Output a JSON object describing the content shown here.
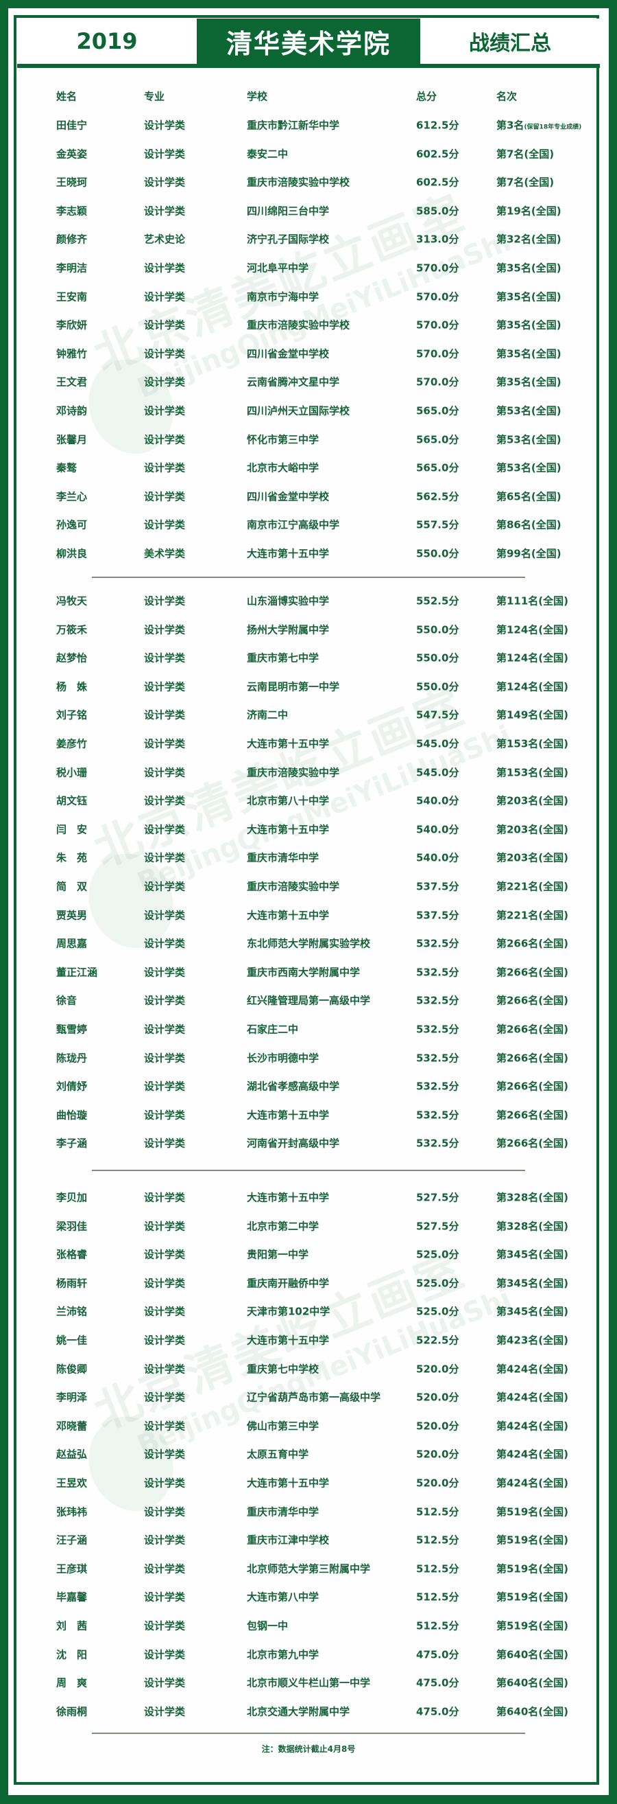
{
  "header": {
    "year": "2019",
    "title": "清华美术学院",
    "subtitle": "战绩汇总"
  },
  "colors": {
    "brand_green": "#0b6633",
    "text_green": "#16613a"
  },
  "watermark": {
    "cn": "北京清美屹立画室",
    "en": "BeijingQingMeiYiLiHuaShi"
  },
  "columns": [
    "姓名",
    "专业",
    "学校",
    "总分",
    "名次"
  ],
  "groups": [
    [
      [
        "田佳宁",
        "设计学类",
        "重庆市黔江新华中学",
        "612.5分",
        "第3名",
        "(保留18年专业成绩)"
      ],
      [
        "金英姿",
        "设计学类",
        "泰安二中",
        "602.5分",
        "第7名(全国)"
      ],
      [
        "王晓珂",
        "设计学类",
        "重庆市涪陵实验中学校",
        "602.5分",
        "第7名(全国)"
      ],
      [
        "李志颖",
        "设计学类",
        "四川绵阳三台中学",
        "585.0分",
        "第19名(全国)"
      ],
      [
        "颜修齐",
        "艺术史论",
        "济宁孔子国际学校",
        "313.0分",
        "第32名(全国)"
      ],
      [
        "李明洁",
        "设计学类",
        "河北阜平中学",
        "570.0分",
        "第35名(全国)"
      ],
      [
        "王安南",
        "设计学类",
        "南京市宁海中学",
        "570.0分",
        "第35名(全国)"
      ],
      [
        "李欣妍",
        "设计学类",
        "重庆市涪陵实验中学校",
        "570.0分",
        "第35名(全国)"
      ],
      [
        "钟雅竹",
        "设计学类",
        "四川省金堂中学校",
        "570.0分",
        "第35名(全国)"
      ],
      [
        "王文君",
        "设计学类",
        "云南省腾冲文星中学",
        "570.0分",
        "第35名(全国)"
      ],
      [
        "邓诗韵",
        "设计学类",
        "四川泸州天立国际学校",
        "565.0分",
        "第53名(全国)"
      ],
      [
        "张馨月",
        "设计学类",
        "怀化市第三中学",
        "565.0分",
        "第53名(全国)"
      ],
      [
        "秦骜",
        "设计学类",
        "北京市大峪中学",
        "565.0分",
        "第53名(全国)"
      ],
      [
        "李兰心",
        "设计学类",
        "四川省金堂中学校",
        "562.5分",
        "第65名(全国)"
      ],
      [
        "孙逸可",
        "设计学类",
        "南京市江宁高级中学",
        "557.5分",
        "第86名(全国)"
      ],
      [
        "柳洪良",
        "美术学类",
        "大连市第十五中学",
        "550.0分",
        "第99名(全国)"
      ]
    ],
    [
      [
        "冯牧天",
        "设计学类",
        "山东淄博实验中学",
        "552.5分",
        "第111名(全国)"
      ],
      [
        "万筱禾",
        "设计学类",
        "扬州大学附属中学",
        "550.0分",
        "第124名(全国)"
      ],
      [
        "赵梦怡",
        "设计学类",
        "重庆市第七中学",
        "550.0分",
        "第124名(全国)"
      ],
      [
        "杨　姝",
        "设计学类",
        "云南昆明市第一中学",
        "550.0分",
        "第124名(全国)"
      ],
      [
        "刘子铭",
        "设计学类",
        "济南二中",
        "547.5分",
        "第149名(全国)"
      ],
      [
        "姜彦竹",
        "设计学类",
        "大连市第十五中学",
        "545.0分",
        "第153名(全国)"
      ],
      [
        "税小珊",
        "设计学类",
        "重庆市涪陵实验中学",
        "545.0分",
        "第153名(全国)"
      ],
      [
        "胡文钰",
        "设计学类",
        "北京市第八十中学",
        "540.0分",
        "第203名(全国)"
      ],
      [
        "闫　安",
        "设计学类",
        "大连市第十五中学",
        "540.0分",
        "第203名(全国)"
      ],
      [
        "朱　苑",
        "设计学类",
        "重庆市清华中学",
        "540.0分",
        "第203名(全国)"
      ],
      [
        "简　双",
        "设计学类",
        "重庆市涪陵实验中学",
        "537.5分",
        "第221名(全国)"
      ],
      [
        "贾英男",
        "设计学类",
        "大连市第十五中学",
        "537.5分",
        "第221名(全国)"
      ],
      [
        "周思嘉",
        "设计学类",
        "东北师范大学附属实验学校",
        "532.5分",
        "第266名(全国)"
      ],
      [
        "董正江涵",
        "设计学类",
        "重庆市西南大学附属中学",
        "532.5分",
        "第266名(全国)"
      ],
      [
        "徐音",
        "设计学类",
        "红兴隆管理局第一高级中学",
        "532.5分",
        "第266名(全国)"
      ],
      [
        "甄雪婷",
        "设计学类",
        "石家庄二中",
        "532.5分",
        "第266名(全国)"
      ],
      [
        "陈珑丹",
        "设计学类",
        "长沙市明德中学",
        "532.5分",
        "第266名(全国)"
      ],
      [
        "刘倩妤",
        "设计学类",
        "湖北省孝感高级中学",
        "532.5分",
        "第266名(全国)"
      ],
      [
        "曲怡璇",
        "设计学类",
        "大连市第十五中学",
        "532.5分",
        "第266名(全国)"
      ],
      [
        "李子涵",
        "设计学类",
        "河南省开封高级中学",
        "532.5分",
        "第266名(全国)"
      ]
    ],
    [
      [
        "李贝加",
        "设计学类",
        "大连市第十五中学",
        "527.5分",
        "第328名(全国)"
      ],
      [
        "梁羽佳",
        "设计学类",
        "北京市第二中学",
        "527.5分",
        "第328名(全国)"
      ],
      [
        "张格睿",
        "设计学类",
        "贵阳第一中学",
        "525.0分",
        "第345名(全国)"
      ],
      [
        "杨雨轩",
        "设计学类",
        "重庆南开融侨中学",
        "525.0分",
        "第345名(全国)"
      ],
      [
        "兰沛铭",
        "设计学类",
        "天津市第102中学",
        "525.0分",
        "第345名(全国)"
      ],
      [
        "姚一佳",
        "设计学类",
        "大连市第十五中学",
        "522.5分",
        "第423名(全国)"
      ],
      [
        "陈俊卿",
        "设计学类",
        "重庆第七中学校",
        "520.0分",
        "第424名(全国)"
      ],
      [
        "李明泽",
        "设计学类",
        "辽宁省葫芦岛市第一高级中学",
        "520.0分",
        "第424名(全国)"
      ],
      [
        "邓晓蕾",
        "设计学类",
        "佛山市第三中学",
        "520.0分",
        "第424名(全国)"
      ],
      [
        "赵益弘",
        "设计学类",
        "太原五育中学",
        "520.0分",
        "第424名(全国)"
      ],
      [
        "王昱欢",
        "设计学类",
        "大连市第十五中学",
        "520.0分",
        "第424名(全国)"
      ],
      [
        "张玮祎",
        "设计学类",
        "重庆市清华中学",
        "512.5分",
        "第519名(全国)"
      ],
      [
        "汪子涵",
        "设计学类",
        "重庆市江津中学校",
        "512.5分",
        "第519名(全国)"
      ],
      [
        "王彦琪",
        "设计学类",
        "北京师范大学第三附属中学",
        "512.5分",
        "第519名(全国)"
      ],
      [
        "毕嘉馨",
        "设计学类",
        "大连市第八中学",
        "512.5分",
        "第519名(全国)"
      ],
      [
        "刘　茜",
        "设计学类",
        "包钢一中",
        "512.5分",
        "第519名(全国)"
      ],
      [
        "沈　阳",
        "设计学类",
        "北京市第九中学",
        "475.0分",
        "第640名(全国)"
      ],
      [
        "周　爽",
        "设计学类",
        "北京市顺义牛栏山第一中学",
        "475.0分",
        "第640名(全国)"
      ],
      [
        "徐雨桐",
        "设计学类",
        "北京交通大学附属中学",
        "475.0分",
        "第640名(全国)"
      ]
    ]
  ],
  "footer_note": "注：数据统计截止4月8号"
}
